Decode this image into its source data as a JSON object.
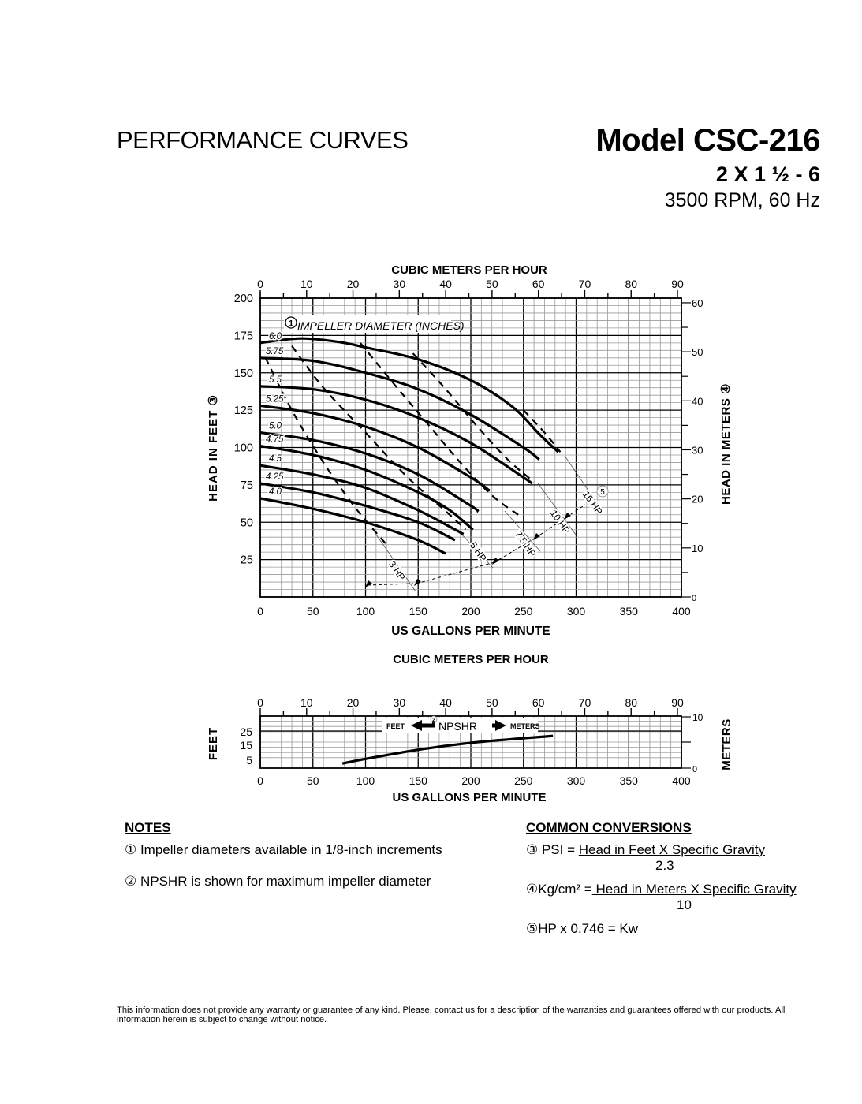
{
  "header": {
    "title": "PERFORMANCE CURVES",
    "model": "Model CSC-216",
    "size": "2 X 1 ½ - 6",
    "speed": "3500 RPM, 60 Hz"
  },
  "chart_data": [
    {
      "type": "line",
      "title": "Pump Performance Curves (Head vs Flow)",
      "xlabel": "US GALLONS PER MINUTE",
      "x2label": "CUBIC METERS PER HOUR",
      "ylabel": "HEAD IN FEET ③",
      "y2label": "HEAD IN METERS ④",
      "xlim": [
        0,
        400
      ],
      "ylim": [
        0,
        200
      ],
      "x2lim": [
        0,
        90.8
      ],
      "y2lim": [
        0,
        61
      ],
      "xticks": [
        0,
        50,
        100,
        150,
        200,
        250,
        300,
        350,
        400
      ],
      "yticks": [
        25,
        50,
        75,
        100,
        125,
        150,
        175,
        200
      ],
      "x2ticks": [
        0,
        10,
        20,
        30,
        40,
        50,
        60,
        70,
        80,
        90
      ],
      "y2ticks": [
        0,
        10,
        20,
        30,
        40,
        50,
        60
      ],
      "grid": true,
      "annotation": "① IMPELLER DIAMETER (INCHES)",
      "series": [
        {
          "name": "6.0",
          "x": [
            0,
            20,
            40,
            60,
            80,
            100,
            150,
            200,
            240,
            265,
            283
          ],
          "y": [
            170,
            172,
            173,
            172,
            170,
            167,
            159,
            145,
            127,
            109,
            97
          ]
        },
        {
          "name": "5.75",
          "x": [
            0,
            50,
            100,
            150,
            200,
            250,
            265
          ],
          "y": [
            160,
            158,
            150,
            139,
            122,
            100,
            92
          ]
        },
        {
          "name": "5.5",
          "x": [
            0,
            50,
            100,
            150,
            200,
            250,
            258
          ],
          "y": [
            141,
            139,
            132,
            120,
            103,
            80,
            76
          ]
        },
        {
          "name": "5.25",
          "x": [
            0,
            50,
            100,
            150,
            200,
            218
          ],
          "y": [
            128,
            123,
            114,
            100,
            80,
            71
          ]
        },
        {
          "name": "5.0",
          "x": [
            0,
            50,
            100,
            150,
            200,
            207
          ],
          "y": [
            110,
            105,
            96,
            82,
            61,
            57
          ]
        },
        {
          "name": "4.75",
          "x": [
            0,
            50,
            100,
            150,
            180,
            202
          ],
          "y": [
            101,
            95,
            85,
            70,
            58,
            45
          ]
        },
        {
          "name": "4.5",
          "x": [
            0,
            50,
            100,
            150,
            180,
            193
          ],
          "y": [
            88,
            82,
            73,
            58,
            47,
            42
          ]
        },
        {
          "name": "4.25",
          "x": [
            0,
            50,
            100,
            150,
            185
          ],
          "y": [
            76,
            70,
            61,
            50,
            38
          ]
        },
        {
          "name": "4.0",
          "x": [
            0,
            50,
            100,
            150,
            176
          ],
          "y": [
            66,
            59,
            50,
            38,
            29
          ]
        }
      ],
      "hp_lines": [
        {
          "name": "3 HP",
          "x": [
            5,
            30,
            60,
            90,
            120
          ],
          "y": [
            160,
            125,
            90,
            60,
            35
          ]
        },
        {
          "name": "5 HP",
          "x": [
            30,
            60,
            100,
            140,
            180,
            195
          ],
          "y": [
            168,
            140,
            110,
            80,
            55,
            45
          ]
        },
        {
          "name": "7.5 HP",
          "x": [
            95,
            130,
            160,
            190,
            220,
            245
          ],
          "y": [
            170,
            140,
            115,
            90,
            68,
            55
          ]
        },
        {
          "name": "10 HP",
          "x": [
            145,
            175,
            205,
            235,
            260
          ],
          "y": [
            163,
            140,
            115,
            92,
            77
          ]
        },
        {
          "name": "15 HP",
          "x": [
            250,
            270,
            285
          ],
          "y": [
            125,
            110,
            97
          ]
        }
      ],
      "hp_labels": [
        "3 HP",
        "5 HP",
        "7.5 HP",
        "10 HP",
        "15 HP"
      ],
      "hp_footnote": "5"
    },
    {
      "type": "line",
      "title": "NPSHR",
      "xlabel": "US GALLONS PER MINUTE",
      "x2label": "CUBIC METERS PER HOUR",
      "ylabel": "FEET",
      "y2label": "METERS",
      "xlim": [
        0,
        400
      ],
      "ylim": [
        0,
        34
      ],
      "yticks": [
        5,
        15,
        25
      ],
      "y2ticks": [
        0,
        10
      ],
      "legend": "FEET ← ② NPSHR → METERS",
      "series": [
        {
          "name": "NPSHR",
          "x": [
            78,
            100,
            150,
            200,
            250,
            278
          ],
          "y": [
            3,
            6,
            12,
            16.5,
            19.5,
            21
          ]
        }
      ]
    }
  ],
  "main_chart": {
    "top_axis_title": "CUBIC METERS PER HOUR",
    "bottom_axis_title": "US GALLONS PER MINUTE",
    "left_axis_title": "HEAD IN FEET ③",
    "right_axis_title": "HEAD IN METERS ④",
    "impeller_label": "IMPELLER DIAMETER (INCHES)",
    "impeller_note_num": "1"
  },
  "npshr_chart": {
    "top_axis_title": "CUBIC METERS PER HOUR",
    "bottom_axis_title": "US GALLONS PER MINUTE",
    "left_axis_title": "FEET",
    "right_axis_title": "METERS",
    "legend_feet": "FEET",
    "legend_npshr": "NPSHR",
    "legend_meters": "METERS",
    "legend_note_num": "2"
  },
  "notes": {
    "header": "NOTES",
    "items": [
      "① Impeller diameters available in 1/8-inch increments",
      "② NPSHR is shown for maximum impeller diameter"
    ]
  },
  "conversions": {
    "header": "COMMON CONVERSIONS",
    "psi_prefix": "③ PSI = ",
    "psi_numerator": "Head in Feet X Specific Gravity",
    "psi_denominator": "2.3",
    "kg_prefix": "④Kg/cm² =",
    "kg_numerator": " Head in Meters X Specific Gravity",
    "kg_denominator": "10",
    "kw": "⑤HP x 0.746 = Kw"
  },
  "disclaimer": "This information does not provide any warranty or guarantee of any kind. Please, contact us for a description of the warranties and guarantees offered with our products.  All information herein is subject to change without notice."
}
